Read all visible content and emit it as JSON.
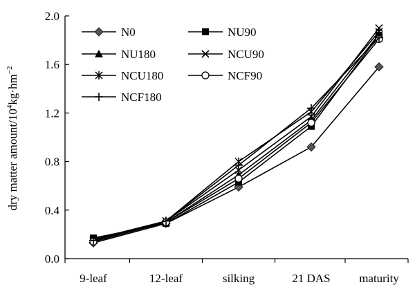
{
  "chart_data": {
    "type": "line",
    "categories": [
      "9-leaf",
      "12-leaf",
      "silking",
      "21 DAS",
      "maturity"
    ],
    "ylabel_main": "dry matter amount/10",
    "ylabel_sup1": "4",
    "ylabel_mid": "kg·hm",
    "ylabel_sup2": "−2",
    "ylim": [
      0.0,
      2.0
    ],
    "yticks": [
      "0.0",
      "0.4",
      "0.8",
      "1.2",
      "1.6",
      "2.0"
    ],
    "ytick_values": [
      0.0,
      0.4,
      0.8,
      1.2,
      1.6,
      2.0
    ],
    "grid": false,
    "legend_position": "top-left",
    "series": [
      {
        "name": "N0",
        "marker": "diamond",
        "values": [
          0.13,
          0.29,
          0.59,
          0.92,
          1.58
        ]
      },
      {
        "name": "NU90",
        "marker": "square",
        "values": [
          0.17,
          0.29,
          0.63,
          1.09,
          1.84
        ]
      },
      {
        "name": "NU180",
        "marker": "triangle",
        "values": [
          0.16,
          0.3,
          0.69,
          1.14,
          1.85
        ]
      },
      {
        "name": "NCU90",
        "marker": "x",
        "values": [
          0.16,
          0.31,
          0.73,
          1.17,
          1.9
        ]
      },
      {
        "name": "NCU180",
        "marker": "asterisk",
        "values": [
          0.15,
          0.31,
          0.8,
          1.21,
          1.87
        ]
      },
      {
        "name": "NCF90",
        "marker": "circle",
        "values": [
          0.14,
          0.3,
          0.66,
          1.12,
          1.81
        ]
      },
      {
        "name": "NCF180",
        "marker": "plus",
        "values": [
          0.15,
          0.31,
          0.77,
          1.24,
          1.82
        ]
      }
    ]
  }
}
